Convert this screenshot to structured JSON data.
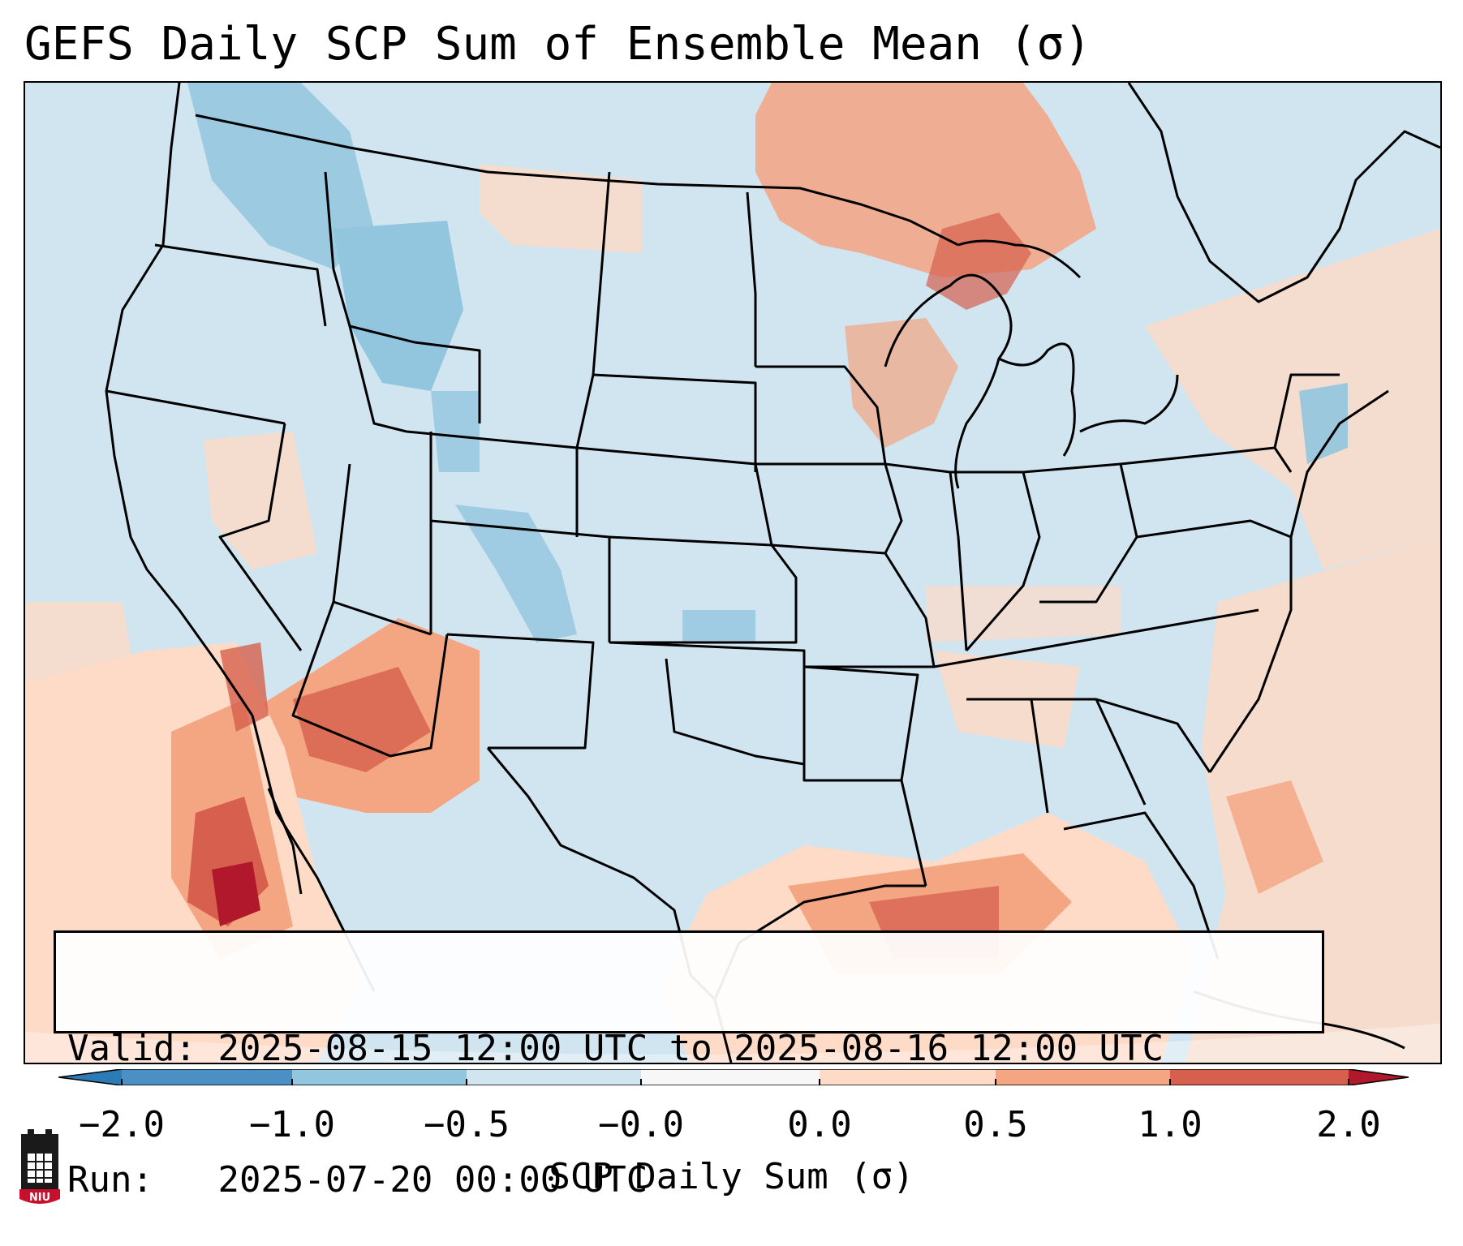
{
  "title": "GEFS Daily SCP Sum of Ensemble Mean (σ)",
  "info": {
    "valid_label": "Valid:",
    "valid_value": "2025-08-15 12:00 UTC to 2025-08-16 12:00 UTC",
    "run_label": "Run:",
    "run_value": "2025-07-20 00:00 UTC"
  },
  "colorbar": {
    "label": "SCP Daily Sum (σ)",
    "ticks": [
      "−2.0",
      "−1.0",
      "−0.5",
      "−0.0",
      "0.0",
      "0.5",
      "1.0",
      "2.0"
    ],
    "bins": [
      "#2c7bb6",
      "#4a90c4",
      "#92c5de",
      "#d1e5f0",
      "#f7f7f7",
      "#fddbc7",
      "#f4a582",
      "#d6604d",
      "#b2182b"
    ]
  },
  "map": {
    "background_color": "#d1e5f0",
    "anomaly_colors": [
      "#92c5de",
      "#fddbc7",
      "#f4a582",
      "#d6604d",
      "#b2182b"
    ],
    "border_color": "#000000"
  },
  "logo": {
    "text": "NIU",
    "color": "#c8102e"
  }
}
